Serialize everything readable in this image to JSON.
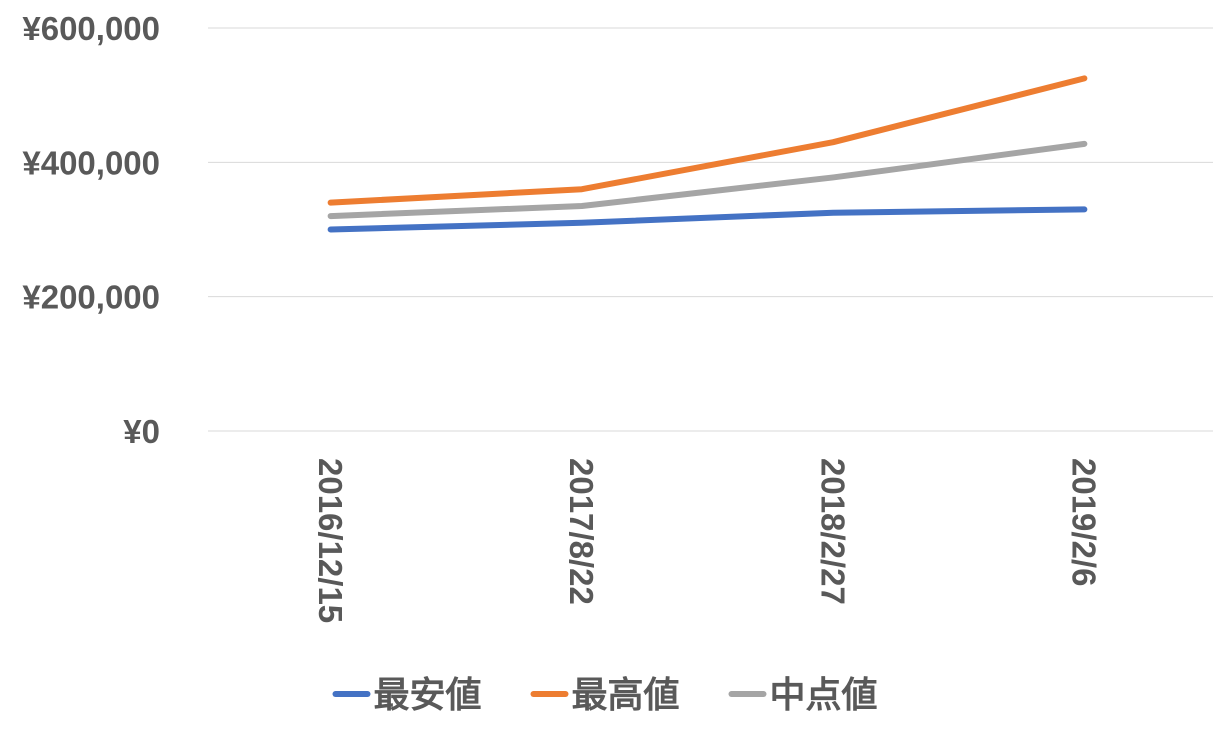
{
  "chart_data": {
    "type": "line",
    "categories": [
      "2016/12/15",
      "2017/8/22",
      "2018/2/27",
      "2019/2/6"
    ],
    "series": [
      {
        "name": "最安値",
        "color": "#4472C4",
        "values": [
          300000,
          310000,
          325000,
          330000
        ]
      },
      {
        "name": "最高値",
        "color": "#ED7D31",
        "values": [
          340000,
          360000,
          430000,
          525000
        ]
      },
      {
        "name": "中点値",
        "color": "#A5A5A5",
        "values": [
          320000,
          335000,
          377500,
          427500
        ]
      }
    ],
    "y_ticks": [
      "¥0",
      "¥200,000",
      "¥400,000",
      "¥600,000"
    ],
    "ylim": [
      0,
      600000
    ],
    "grid": true,
    "legend_position": "bottom",
    "gridline_color": "#D9D9D9"
  }
}
